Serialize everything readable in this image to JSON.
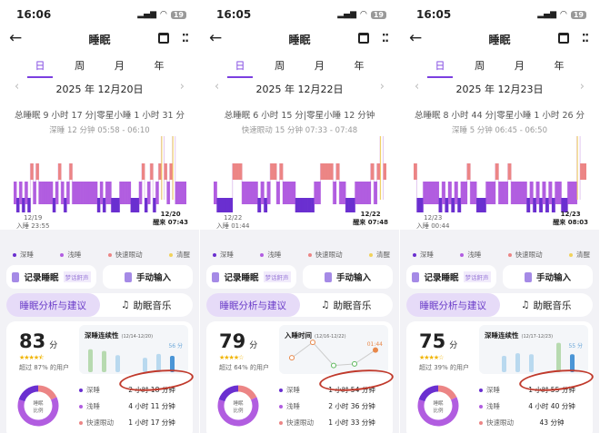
{
  "common": {
    "title": "睡眠",
    "tabs": [
      "日",
      "周",
      "月",
      "年"
    ],
    "legend": [
      "深睡",
      "浅睡",
      "快速眼动",
      "清醒"
    ],
    "record_btn": "记录睡眠",
    "record_badge": "梦话鼾声",
    "manual_btn": "手动输入",
    "seg_analysis": "睡眠分析与建议",
    "seg_music": "助眠音乐",
    "score_unit": "分",
    "donut_label": "睡眠\n比例",
    "rows": [
      "深睡",
      "浅睡",
      "快速眼动"
    ],
    "battery": "19"
  },
  "colors": {
    "deep": "#6a2fd0",
    "light": "#b15de0",
    "rem": "#ec8585",
    "awake": "#f1d25a",
    "accent": "#7b3fe0"
  },
  "panels": [
    {
      "time": "16:06",
      "date": "2025 年 12月20日",
      "summary": "总睡眠 9 小时 17 分|零星小睡 1 小时 31 分",
      "detail": "深睡 12 分钟 05:58 - 06:10",
      "start_date": "12/19",
      "start": "入睡 23:55",
      "end_date": "12/20",
      "end": "醒来 07:43",
      "score": "83",
      "stars": 4.5,
      "beat": "超过 87% 的用户",
      "mini_title": "深睡连续性",
      "mini_range": "(12/14-12/20)",
      "mini_label": "56 分",
      "mini_type": "bar",
      "mini_values": [
        70,
        65,
        52,
        0,
        44,
        56,
        50
      ],
      "deep": "2 小时 18 分钟",
      "light": "4 小时 11 分钟",
      "rem": "1 小时 17 分钟",
      "stages": "LDLDLDRLRLLLLLDLRLDLRLLLLLLLLLDLDLLDDDLLLLDDDLRDLRDLRARLRALLLL"
    },
    {
      "time": "16:05",
      "date": "2025 年 12月22日",
      "summary": "总睡眠 6 小时 15 分|零星小睡 12 分钟",
      "detail": "快速眼动 15 分钟 07:33 - 07:48",
      "start_date": "12/22",
      "start": "入睡 01:44",
      "end_date": "12/22",
      "end": "醒来 07:48",
      "score": "79",
      "stars": 4,
      "beat": "超过 64% 的用户",
      "mini_title": "入睡时间",
      "mini_range": "(12/16-12/22)",
      "mini_label": "01:44",
      "mini_type": "line",
      "mini_values": [
        0.35,
        0.85,
        0.1,
        0.15,
        0.6
      ],
      "deep": "1 小时 54 分钟",
      "light": "2 小时 36 分钟",
      "rem": "1 小时 33 分钟",
      "stages": "LDDDDDRRRLLLLLDLDLRRLRLLLLDDDDDDLLRRRRLRLLDDDLLLLLRLRAR"
    },
    {
      "time": "16:05",
      "date": "2025 年 12月23日",
      "summary": "总睡眠 8 小时 44 分|零星小睡 1 小时 26 分",
      "detail": "深睡 5 分钟 06:45 - 06:50",
      "start_date": "12/23",
      "start": "入睡 00:44",
      "end_date": "12/23",
      "end": "醒来 08:03",
      "score": "75",
      "stars": 4,
      "beat": "超过 39% 的用户",
      "mini_title": "深睡连续性",
      "mini_range": "(12/17-12/23)",
      "mini_label": "55 分",
      "mini_type": "bar",
      "mini_values": [
        0,
        50,
        58,
        55,
        0,
        90,
        55
      ],
      "deep": "1 小时 55 分钟",
      "light": "4 小时 40 分钟",
      "rem": "43 分钟",
      "stages": "RDDLLLLLDLDLDLDLLRLLDDDLLLRLLLRLLLLLDLDLDLDLDLLDDLLLARR"
    }
  ]
}
